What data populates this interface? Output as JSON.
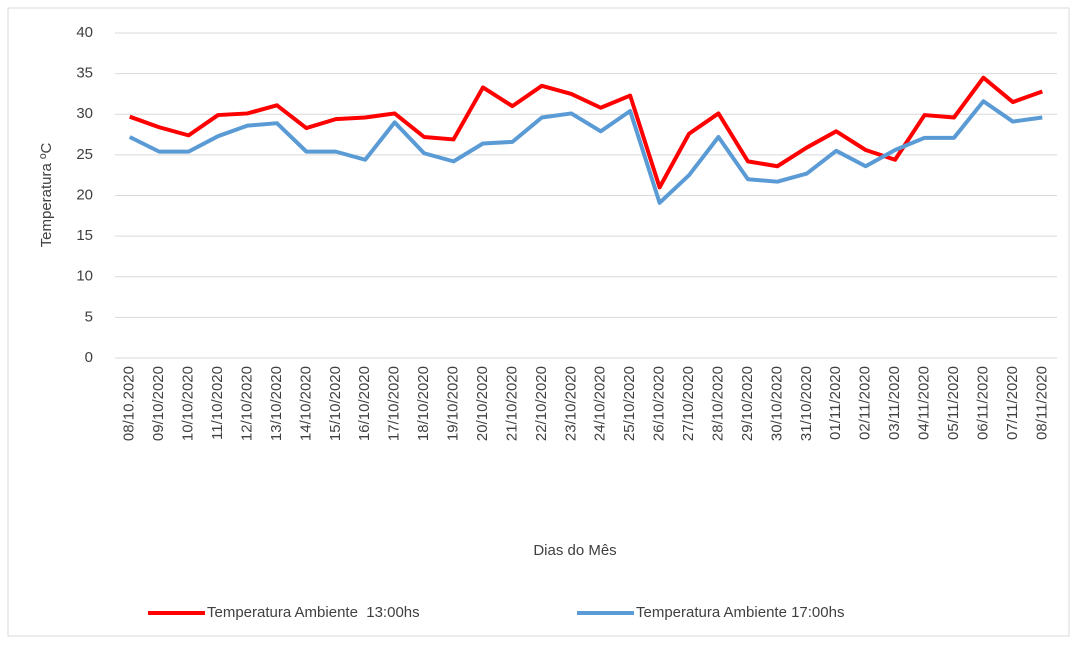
{
  "chart_data": {
    "type": "line",
    "x_label": "Dias do Mês",
    "y_label": "Temperatura ºC",
    "categories": [
      "08/10.2020",
      "09/10/2020",
      "10/10/2020",
      "11/10/2020",
      "12/10/2020",
      "13/10/2020",
      "14/10/2020",
      "15/10/2020",
      "16/10/2020",
      "17/10/2020",
      "18/10/2020",
      "19/10/2020",
      "20/10/2020",
      "21/10/2020",
      "22/10/2020",
      "23/10/2020",
      "24/10/2020",
      "25/10/2020",
      "26/10/2020",
      "27/10/2020",
      "28/10/2020",
      "29/10/2020",
      "30/10/2020",
      "31/10/2020",
      "01/11/2020",
      "02/11/2020",
      "03/11/2020",
      "04/11/2020",
      "05/11/2020",
      "06/11/2020",
      "07/11/2020",
      "08/11/2020"
    ],
    "series": [
      {
        "name": "Temperatura Ambiente  13:00hs",
        "color": "#ff0000",
        "values": [
          29.7,
          28.4,
          27.4,
          29.9,
          30.1,
          31.1,
          28.3,
          29.4,
          29.6,
          30.1,
          27.2,
          26.9,
          33.3,
          31.0,
          33.5,
          32.5,
          30.8,
          32.3,
          21.0,
          27.6,
          30.1,
          24.2,
          23.6,
          25.9,
          27.9,
          25.6,
          24.4,
          29.9,
          29.6,
          34.5,
          31.5,
          32.8
        ]
      },
      {
        "name": "Temperatura Ambiente 17:00hs",
        "color": "#5b9bd5",
        "values": [
          27.2,
          25.4,
          25.4,
          27.3,
          28.6,
          28.9,
          25.4,
          25.4,
          24.4,
          29.0,
          25.2,
          24.2,
          26.4,
          26.6,
          29.6,
          30.1,
          27.9,
          30.4,
          19.1,
          22.5,
          27.2,
          22.0,
          21.7,
          22.7,
          25.5,
          23.6,
          25.6,
          27.1,
          27.1,
          31.6,
          29.1,
          29.6
        ]
      }
    ],
    "ylim": [
      0,
      40
    ],
    "yticks": [
      0,
      5,
      10,
      15,
      20,
      25,
      30,
      35,
      40
    ],
    "grid": true
  }
}
